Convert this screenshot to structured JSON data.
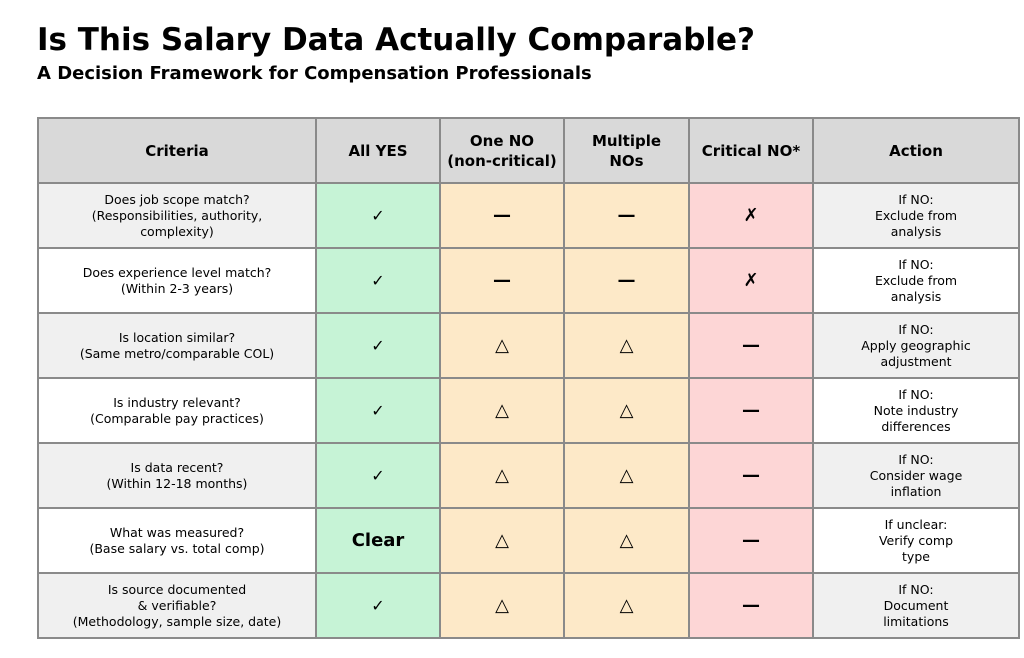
{
  "title": "Is This Salary Data Actually Comparable?",
  "subtitle": "A Decision Framework for Compensation Professionals",
  "colors": {
    "header": "#d9d9d9",
    "all_yes": "#c6f3d6",
    "one_no": "#fde9c8",
    "multiple_nos": "#fde9c8",
    "critical_no": "#fdd6d6"
  },
  "headers": [
    "Criteria",
    "All YES",
    "One NO\n(non-critical)",
    "Multiple\nNOs",
    "Critical NO*",
    "Action"
  ],
  "rows": [
    {
      "criteria": [
        "Does job scope match?",
        "(Responsibilities, authority,",
        "complexity)"
      ],
      "all_yes": "✓",
      "one_no": "—",
      "multiple": "—",
      "critical": "✗",
      "action": [
        "If NO:",
        "Exclude from",
        "analysis"
      ]
    },
    {
      "criteria": [
        "Does experience level match?",
        "(Within 2-3 years)"
      ],
      "all_yes": "✓",
      "one_no": "—",
      "multiple": "—",
      "critical": "✗",
      "action": [
        "If NO:",
        "Exclude from",
        "analysis"
      ]
    },
    {
      "criteria": [
        "Is location similar?",
        "(Same metro/comparable COL)"
      ],
      "all_yes": "✓",
      "one_no": "△",
      "multiple": "△",
      "critical": "—",
      "action": [
        "If NO:",
        "Apply geographic",
        "adjustment"
      ]
    },
    {
      "criteria": [
        "Is industry relevant?",
        "(Comparable pay practices)"
      ],
      "all_yes": "✓",
      "one_no": "△",
      "multiple": "△",
      "critical": "—",
      "action": [
        "If NO:",
        "Note industry",
        "differences"
      ]
    },
    {
      "criteria": [
        "Is data recent?",
        "(Within 12-18 months)"
      ],
      "all_yes": "✓",
      "one_no": "△",
      "multiple": "△",
      "critical": "—",
      "action": [
        "If NO:",
        "Consider wage",
        "inflation"
      ]
    },
    {
      "criteria": [
        "What was measured?",
        "(Base salary vs. total comp)"
      ],
      "all_yes": "Clear",
      "one_no": "△",
      "multiple": "△",
      "critical": "—",
      "action": [
        "If unclear:",
        "Verify comp",
        "type"
      ]
    },
    {
      "criteria": [
        "Is source documented",
        "& verifiable?",
        "(Methodology, sample size, date)"
      ],
      "all_yes": "✓",
      "one_no": "△",
      "multiple": "△",
      "critical": "—",
      "action": [
        "If NO:",
        "Document",
        "limitations"
      ]
    }
  ]
}
